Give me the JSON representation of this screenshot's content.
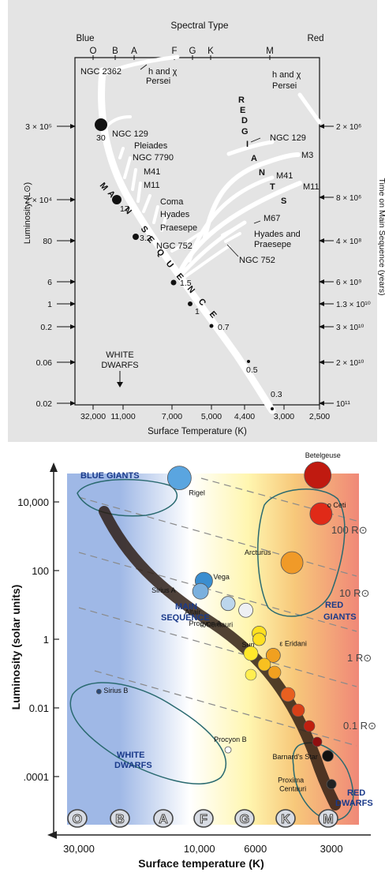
{
  "charts": [
    {
      "id": "cluster-hr",
      "type": "scatter",
      "title": "Spectral Type",
      "top_left_label": "Blue",
      "top_right_label": "Red",
      "spectral_types": [
        "O",
        "B",
        "A",
        "F",
        "G",
        "K",
        "M"
      ],
      "xlabel": "Surface Temperature (K)",
      "x_ticks": [
        "32,000",
        "11,000",
        "7,000",
        "5,000",
        "4,400",
        "3,000",
        "2,500"
      ],
      "ylabel": "Luminosity (L⊙)",
      "y_ticks": [
        "3 × 10⁵",
        "2 × 10⁴",
        "80",
        "6",
        "1",
        "0.2",
        "0.06",
        "0.02"
      ],
      "right_ylabel": "Time on Main Sequence (years)",
      "right_ticks": [
        "2 × 10⁶",
        "8 × 10⁶",
        "4 × 10⁸",
        "6 × 10⁹",
        "1.3 × 10¹⁰",
        "3 × 10¹⁰",
        "2 × 10¹⁰",
        "10¹¹"
      ],
      "main_sequence_label": [
        "M",
        "A",
        "I",
        "N",
        "S",
        "E",
        "Q",
        "U",
        "E",
        "N",
        "C",
        "E"
      ],
      "red_giants_label": [
        "R",
        "E",
        "D",
        "G",
        "I",
        "A",
        "N",
        "T",
        "S"
      ],
      "white_dwarfs_label": [
        "WHITE",
        "DWARFS"
      ],
      "cluster_labels_left": [
        "NGC 2362",
        "h and χ",
        "Persei",
        "NGC 129",
        "Pleiades",
        "NGC 7790",
        "M41",
        "M11",
        "Coma",
        "Hyades",
        "Praesepe",
        "NGC 752"
      ],
      "cluster_labels_right": [
        "h and χ",
        "Persei",
        "NGC 129",
        "M3",
        "M41",
        "M11",
        "M67",
        "Hyades and",
        "Praesepe",
        "NGC 752"
      ],
      "mass_points": [
        {
          "mass": "30",
          "size": 8
        },
        {
          "mass": "17",
          "size": 6
        },
        {
          "mass": "3.2",
          "size": 4
        },
        {
          "mass": "1.5",
          "size": 3.5
        },
        {
          "mass": "1",
          "size": 3
        },
        {
          "mass": "0.7",
          "size": 2.5
        },
        {
          "mass": "0.5",
          "size": 2
        },
        {
          "mass": "0.3",
          "size": 2
        }
      ],
      "colors": {
        "background": "#e4e4e4",
        "ink": "#111111",
        "tracks": "#ffffff"
      }
    },
    {
      "id": "hr-diagram",
      "type": "scatter",
      "xlabel": "Surface temperature (K)",
      "x_ticks": [
        "30,000",
        "10,000",
        "6000",
        "3000"
      ],
      "ylabel": "Luminosity (solar units)",
      "y_ticks": [
        "10,000",
        "100",
        "1",
        "0.01",
        ".0001"
      ],
      "spectral_classes": [
        "O",
        "B",
        "A",
        "F",
        "G",
        "K",
        "M"
      ],
      "radius_labels": [
        "100 R⊙",
        "10 R⊙",
        "1 R⊙",
        "0.1 R⊙"
      ],
      "regions": {
        "blue_giants": "BLUE GIANTS",
        "main_sequence": [
          "MAIN",
          "SEQUENCE"
        ],
        "red_giants": [
          "RED",
          "GIANTS"
        ],
        "white_dwarfs": [
          "WHITE",
          "DWARFS"
        ],
        "red_dwarfs": [
          "RED",
          "DWARFS"
        ]
      },
      "stars": [
        {
          "name": "Rigel",
          "temp": 12000,
          "lum": 50000,
          "color": "#5aa5e0"
        },
        {
          "name": "Betelgeuse",
          "temp": 3400,
          "lum": 60000,
          "color": "#c01a10"
        },
        {
          "name": "ο Ceti",
          "temp": 3300,
          "lum": 4500,
          "color": "#e02a18"
        },
        {
          "name": "Arcturus",
          "temp": 4300,
          "lum": 170,
          "color": "#f09a28"
        },
        {
          "name": "Vega",
          "temp": 9600,
          "lum": 50,
          "color": "#3a8ed0"
        },
        {
          "name": "Sirius A",
          "temp": 9900,
          "lum": 25,
          "color": "#7ab0de"
        },
        {
          "name": "Altair",
          "temp": 7700,
          "lum": 11,
          "color": "#bcd6ec"
        },
        {
          "name": "Procyon A",
          "temp": 6550,
          "lum": 7,
          "color": "#eef0f4"
        },
        {
          "name": "α Centauri",
          "temp": 5800,
          "lum": 1.5,
          "color": "#ffe020"
        },
        {
          "name": "Sun",
          "temp": 5800,
          "lum": 1,
          "color": "#ffe020"
        },
        {
          "name": "ε Eridani",
          "temp": 5100,
          "lum": 0.34,
          "color": "#f0a020"
        },
        {
          "name": "Sirius B",
          "temp": 25000,
          "lum": 0.03,
          "color": "#2a4a7a"
        },
        {
          "name": "Procyon B",
          "temp": 7700,
          "lum": 0.0006,
          "color": "#ffffff"
        },
        {
          "name": "Barnard's Star",
          "temp": 3100,
          "lum": 0.0004,
          "color": "#111111"
        },
        {
          "name": "Proxima Centauri",
          "temp": 3000,
          "lum": 6e-05,
          "color": "#222222"
        }
      ],
      "colors": {
        "blue": "#9fb8e6",
        "yellow": "#fff6b0",
        "red": "#f08878",
        "band": "#2b1a10"
      }
    }
  ]
}
